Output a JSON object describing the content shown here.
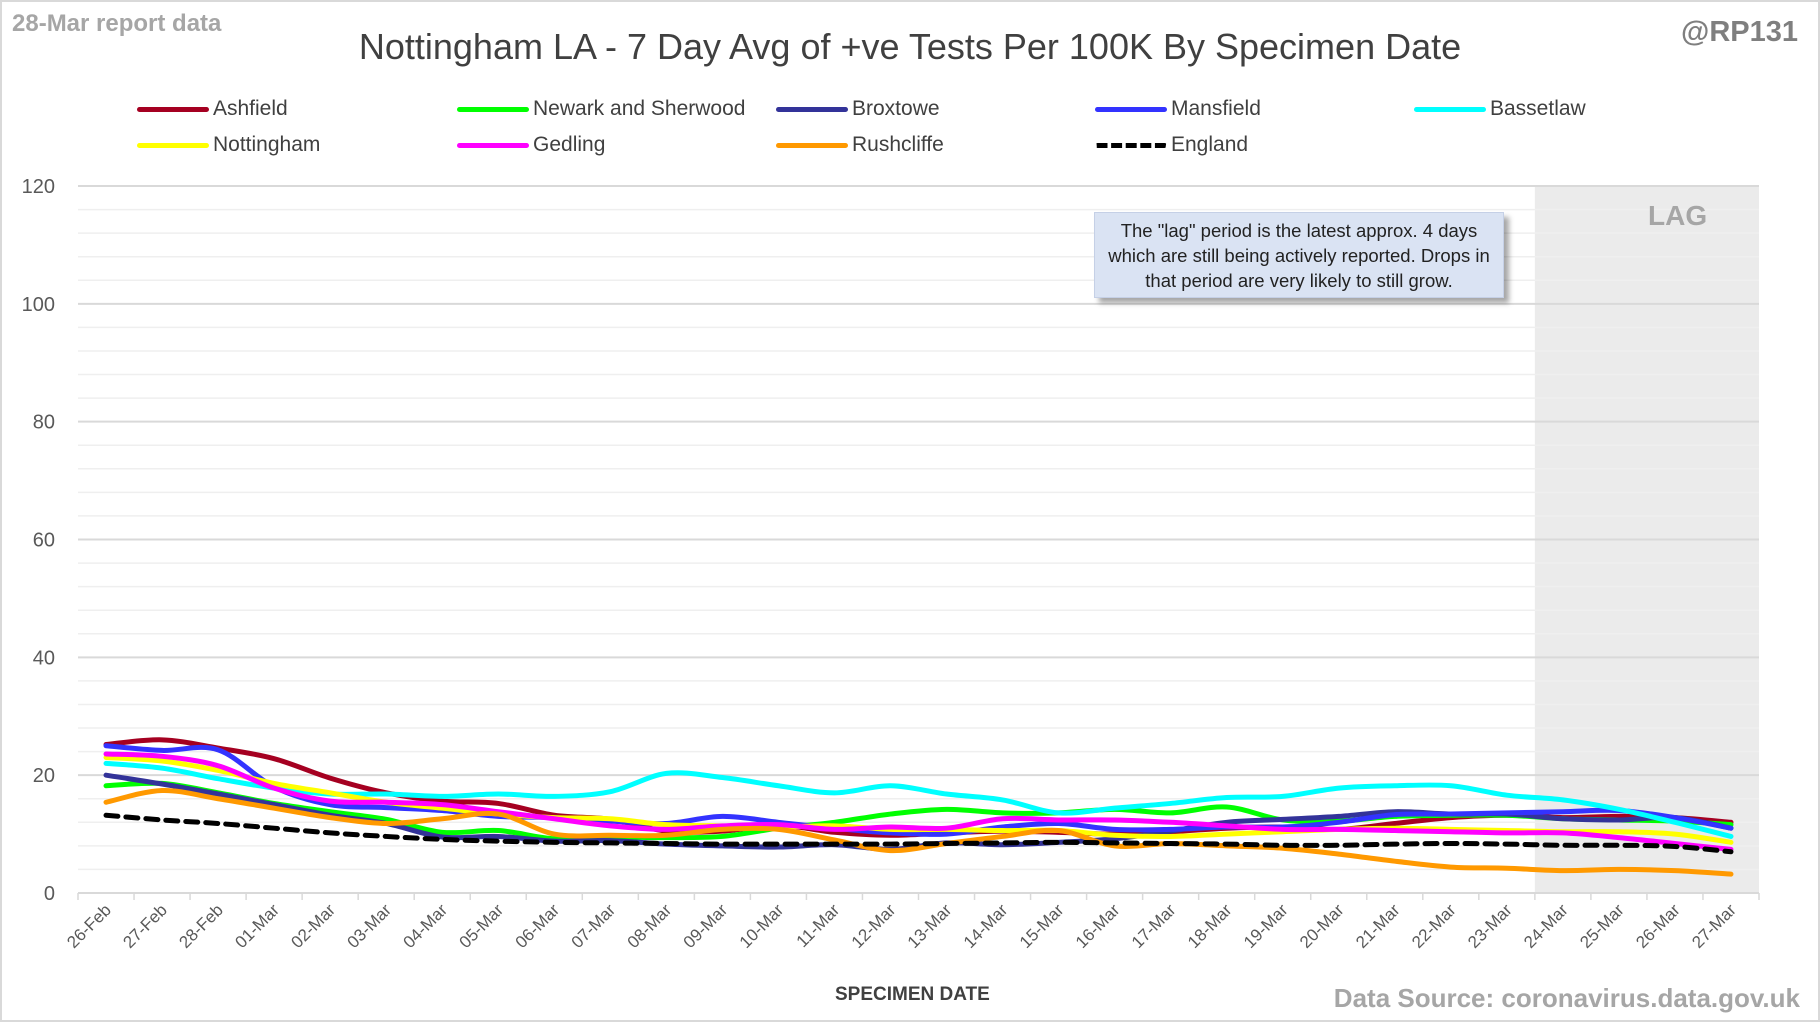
{
  "header": {
    "report_date": "28-Mar report data",
    "handle": "@RP131",
    "title": "Nottingham LA - 7 Day Avg of +ve Tests Per 100K By Specimen Date"
  },
  "footer": {
    "source": "Data Source: coronavirus.data.gov.uk"
  },
  "annotation": {
    "text": "The \"lag\" period is the latest approx. 4 days which are still being actively reported.  Drops in that period are very likely to still grow.",
    "lag_label": "LAG"
  },
  "chart_data": {
    "type": "line",
    "title": "Nottingham LA - 7 Day Avg of +ve Tests Per 100K By Specimen Date",
    "xlabel": "SPECIMEN DATE",
    "ylabel": "",
    "ylim": [
      0,
      120
    ],
    "yticks": [
      0,
      20,
      40,
      60,
      80,
      100,
      120
    ],
    "grid": true,
    "legend_position": "top",
    "lag_period": {
      "start": "24-Mar",
      "end": "27-Mar",
      "label": "LAG",
      "color": "#ebebeb"
    },
    "categories": [
      "26-Feb",
      "27-Feb",
      "28-Feb",
      "01-Mar",
      "02-Mar",
      "03-Mar",
      "04-Mar",
      "05-Mar",
      "06-Mar",
      "07-Mar",
      "08-Mar",
      "09-Mar",
      "10-Mar",
      "11-Mar",
      "12-Mar",
      "13-Mar",
      "14-Mar",
      "15-Mar",
      "16-Mar",
      "17-Mar",
      "18-Mar",
      "19-Mar",
      "20-Mar",
      "21-Mar",
      "22-Mar",
      "23-Mar",
      "24-Mar",
      "25-Mar",
      "26-Mar",
      "27-Mar"
    ],
    "series": [
      {
        "name": "Ashfield",
        "color": "#a50021",
        "dashed": false,
        "values": [
          25.2,
          26.0,
          24.6,
          22.8,
          19.5,
          17.0,
          15.6,
          15.2,
          13.2,
          12.5,
          10.5,
          10.5,
          11.5,
          10.3,
          9.8,
          10.2,
          10.5,
          10.3,
          10.0,
          10.4,
          11.0,
          11.2,
          10.8,
          11.8,
          12.8,
          13.2,
          12.8,
          13.0,
          12.8,
          12.0
        ]
      },
      {
        "name": "Newark and Sherwood",
        "color": "#00ff00",
        "dashed": false,
        "values": [
          18.2,
          18.6,
          17.0,
          15.2,
          13.8,
          12.5,
          10.3,
          10.6,
          9.2,
          9.5,
          9.4,
          9.6,
          11.0,
          12.0,
          13.4,
          14.2,
          13.6,
          13.6,
          14.2,
          13.6,
          14.6,
          12.4,
          12.2,
          13.0,
          13.2,
          13.2,
          12.6,
          12.4,
          12.2,
          11.6
        ]
      },
      {
        "name": "Broxtowe",
        "color": "#333399",
        "dashed": false,
        "values": [
          20.0,
          18.5,
          16.8,
          15.0,
          13.2,
          11.8,
          9.5,
          9.6,
          8.8,
          8.9,
          8.3,
          8.0,
          7.8,
          8.2,
          7.4,
          8.5,
          8.2,
          8.6,
          9.2,
          10.5,
          12.0,
          12.5,
          13.0,
          13.8,
          13.4,
          13.4,
          12.6,
          12.4,
          12.8,
          11.0
        ]
      },
      {
        "name": "Mansfield",
        "color": "#3333ff",
        "dashed": false,
        "values": [
          25.0,
          24.2,
          24.3,
          18.0,
          15.0,
          14.5,
          14.0,
          13.0,
          12.8,
          12.2,
          11.8,
          13.0,
          12.0,
          11.0,
          10.2,
          10.0,
          11.2,
          11.8,
          10.8,
          10.8,
          11.2,
          11.2,
          12.0,
          13.3,
          13.4,
          13.6,
          13.8,
          14.0,
          12.8,
          11.0
        ]
      },
      {
        "name": "Bassetlaw",
        "color": "#00ffff",
        "dashed": false,
        "values": [
          22.0,
          21.2,
          19.4,
          17.8,
          16.8,
          16.8,
          16.4,
          16.8,
          16.4,
          17.2,
          20.3,
          19.6,
          18.2,
          17.0,
          18.2,
          16.8,
          15.8,
          13.6,
          14.4,
          15.2,
          16.2,
          16.4,
          17.8,
          18.2,
          18.2,
          16.6,
          15.8,
          14.2,
          12.0,
          9.6
        ]
      },
      {
        "name": "Nottingham",
        "color": "#ffff00",
        "dashed": false,
        "values": [
          23.0,
          22.4,
          20.8,
          18.6,
          17.0,
          15.4,
          14.4,
          13.4,
          12.8,
          12.6,
          11.6,
          11.4,
          11.2,
          11.4,
          10.8,
          10.8,
          10.6,
          10.6,
          9.8,
          9.6,
          10.0,
          10.4,
          10.8,
          11.0,
          10.8,
          10.6,
          10.4,
          10.4,
          10.0,
          8.6
        ]
      },
      {
        "name": "Gedling",
        "color": "#ff00ff",
        "dashed": false,
        "values": [
          23.6,
          23.2,
          21.6,
          17.8,
          15.6,
          15.4,
          15.0,
          13.8,
          12.6,
          11.4,
          10.8,
          11.4,
          11.6,
          10.8,
          11.2,
          11.0,
          12.6,
          12.4,
          12.4,
          12.0,
          11.4,
          10.8,
          10.8,
          10.6,
          10.4,
          10.2,
          10.2,
          9.4,
          8.4,
          7.4
        ]
      },
      {
        "name": "Rushcliffe",
        "color": "#ff9900",
        "dashed": false,
        "values": [
          15.4,
          17.4,
          16.0,
          14.4,
          12.8,
          11.8,
          12.6,
          13.4,
          10.0,
          9.8,
          9.8,
          10.8,
          10.8,
          9.0,
          7.2,
          8.4,
          9.6,
          10.6,
          8.0,
          8.4,
          8.0,
          7.6,
          6.6,
          5.4,
          4.4,
          4.2,
          3.8,
          4.0,
          3.8,
          3.2
        ]
      },
      {
        "name": "England",
        "color": "#000000",
        "dashed": true,
        "values": [
          13.2,
          12.4,
          11.8,
          11.0,
          10.2,
          9.6,
          9.1,
          8.8,
          8.6,
          8.5,
          8.4,
          8.3,
          8.3,
          8.3,
          8.3,
          8.4,
          8.5,
          8.6,
          8.5,
          8.4,
          8.3,
          8.1,
          8.1,
          8.3,
          8.4,
          8.3,
          8.1,
          8.1,
          7.9,
          7.0
        ]
      }
    ]
  }
}
